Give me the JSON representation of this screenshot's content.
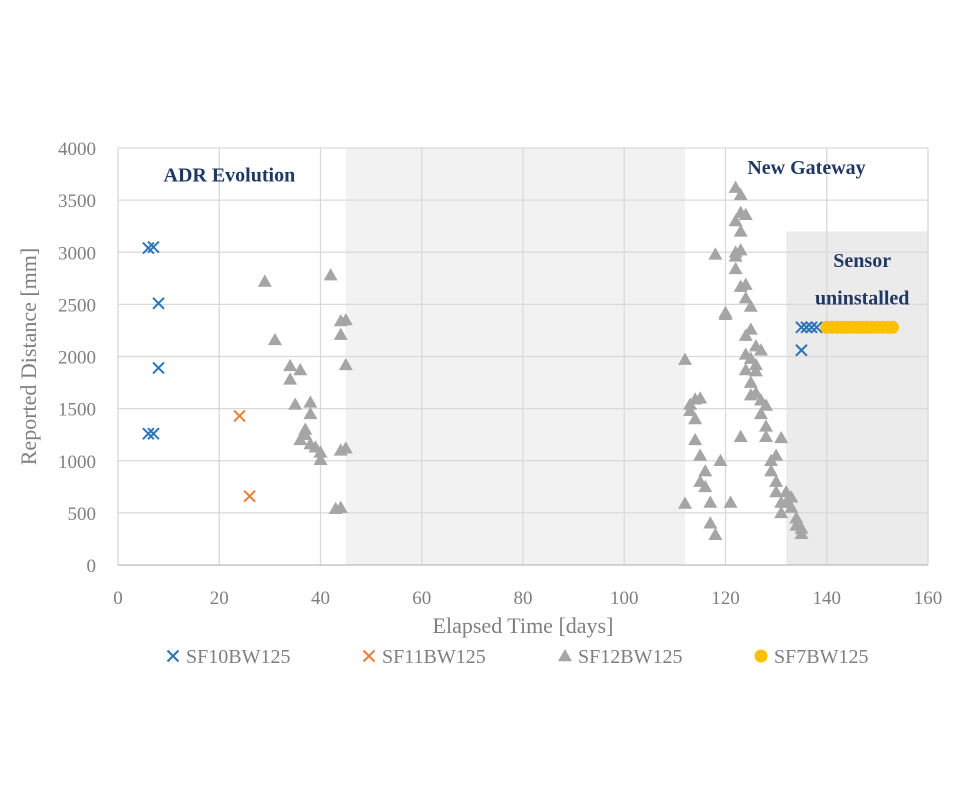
{
  "chart_data": {
    "type": "scatter",
    "title": "",
    "xlabel": "Elapsed Time [days]",
    "ylabel": "Reported Distance [mm]",
    "xlim": [
      0,
      160
    ],
    "ylim": [
      0,
      4000
    ],
    "x_ticks": [
      0,
      20,
      40,
      60,
      80,
      100,
      120,
      140,
      160
    ],
    "y_ticks": [
      0,
      500,
      1000,
      1500,
      2000,
      2500,
      3000,
      3500,
      4000
    ],
    "grid": true,
    "legend_position": "bottom",
    "shaded_regions": [
      {
        "x_from": 45,
        "x_to": 112,
        "y_from": 0,
        "y_to": 4000,
        "color": "#f2f2f2"
      },
      {
        "x_from": 132,
        "x_to": 160,
        "y_from": 0,
        "y_to": 3200,
        "color": "#ebebeb"
      }
    ],
    "annotations": [
      {
        "text": "ADR Evolution",
        "x": 22,
        "y": 3680
      },
      {
        "text": "New Gateway",
        "x": 136,
        "y": 3750
      },
      {
        "text": "Sensor",
        "x": 147,
        "y": 2860
      },
      {
        "text": "uninstalled",
        "x": 147,
        "y": 2500
      }
    ],
    "series": [
      {
        "name": "SF10BW125",
        "marker": "x",
        "color": "#2e75b6",
        "points": [
          [
            6,
            3040
          ],
          [
            7,
            3050
          ],
          [
            8,
            2510
          ],
          [
            8,
            1890
          ],
          [
            6,
            1260
          ],
          [
            7,
            1260
          ],
          [
            135,
            2060
          ],
          [
            135,
            2280
          ],
          [
            136,
            2280
          ],
          [
            137,
            2280
          ],
          [
            138,
            2280
          ]
        ]
      },
      {
        "name": "SF11BW125",
        "marker": "x",
        "color": "#ed7d31",
        "points": [
          [
            24,
            1430
          ],
          [
            26,
            660
          ]
        ]
      },
      {
        "name": "SF12BW125",
        "marker": "triangle",
        "color": "#a5a5a5",
        "points": [
          [
            29,
            2720
          ],
          [
            31,
            2160
          ],
          [
            34,
            1910
          ],
          [
            34,
            1780
          ],
          [
            35,
            1540
          ],
          [
            36,
            1870
          ],
          [
            36,
            1200
          ],
          [
            37,
            1250
          ],
          [
            37,
            1300
          ],
          [
            38,
            1560
          ],
          [
            38,
            1450
          ],
          [
            38,
            1160
          ],
          [
            39,
            1130
          ],
          [
            40,
            1080
          ],
          [
            40,
            1010
          ],
          [
            42,
            2780
          ],
          [
            43,
            540
          ],
          [
            44,
            550
          ],
          [
            44,
            2210
          ],
          [
            44,
            2340
          ],
          [
            44,
            1100
          ],
          [
            45,
            2350
          ],
          [
            45,
            1920
          ],
          [
            45,
            1120
          ],
          [
            112,
            1970
          ],
          [
            112,
            590
          ],
          [
            113,
            1480
          ],
          [
            113,
            1540
          ],
          [
            114,
            1590
          ],
          [
            114,
            1400
          ],
          [
            114,
            1200
          ],
          [
            115,
            1600
          ],
          [
            115,
            1050
          ],
          [
            115,
            800
          ],
          [
            116,
            900
          ],
          [
            116,
            750
          ],
          [
            117,
            600
          ],
          [
            117,
            400
          ],
          [
            118,
            290
          ],
          [
            118,
            2980
          ],
          [
            119,
            1000
          ],
          [
            120,
            2400
          ],
          [
            120,
            2420
          ],
          [
            121,
            600
          ],
          [
            122,
            3620
          ],
          [
            122,
            3300
          ],
          [
            122,
            3000
          ],
          [
            122,
            2840
          ],
          [
            122,
            2960
          ],
          [
            123,
            3550
          ],
          [
            123,
            3380
          ],
          [
            123,
            3200
          ],
          [
            123,
            3020
          ],
          [
            123,
            2670
          ],
          [
            123,
            1230
          ],
          [
            124,
            3360
          ],
          [
            124,
            2690
          ],
          [
            124,
            2560
          ],
          [
            124,
            2200
          ],
          [
            124,
            2020
          ],
          [
            124,
            1870
          ],
          [
            125,
            2480
          ],
          [
            125,
            2260
          ],
          [
            125,
            1980
          ],
          [
            125,
            1750
          ],
          [
            125,
            1630
          ],
          [
            126,
            2100
          ],
          [
            126,
            1920
          ],
          [
            126,
            1860
          ],
          [
            126,
            1650
          ],
          [
            127,
            2060
          ],
          [
            127,
            1580
          ],
          [
            127,
            1450
          ],
          [
            128,
            1530
          ],
          [
            128,
            1330
          ],
          [
            128,
            1230
          ],
          [
            129,
            1000
          ],
          [
            129,
            900
          ],
          [
            130,
            1050
          ],
          [
            130,
            800
          ],
          [
            130,
            700
          ],
          [
            131,
            1220
          ],
          [
            131,
            600
          ],
          [
            131,
            500
          ],
          [
            132,
            700
          ],
          [
            132,
            600
          ],
          [
            133,
            650
          ],
          [
            133,
            550
          ],
          [
            134,
            450
          ],
          [
            134,
            380
          ],
          [
            135,
            350
          ],
          [
            135,
            300
          ]
        ]
      },
      {
        "name": "SF7BW125",
        "marker": "circle",
        "color": "#ffc000",
        "points": [
          [
            140,
            2280
          ],
          [
            141,
            2280
          ],
          [
            142,
            2280
          ],
          [
            143,
            2280
          ],
          [
            144,
            2280
          ],
          [
            145,
            2280
          ],
          [
            146,
            2280
          ],
          [
            147,
            2280
          ],
          [
            148,
            2280
          ],
          [
            149,
            2280
          ],
          [
            150,
            2280
          ],
          [
            151,
            2280
          ],
          [
            152,
            2280
          ],
          [
            153,
            2280
          ]
        ]
      }
    ]
  }
}
